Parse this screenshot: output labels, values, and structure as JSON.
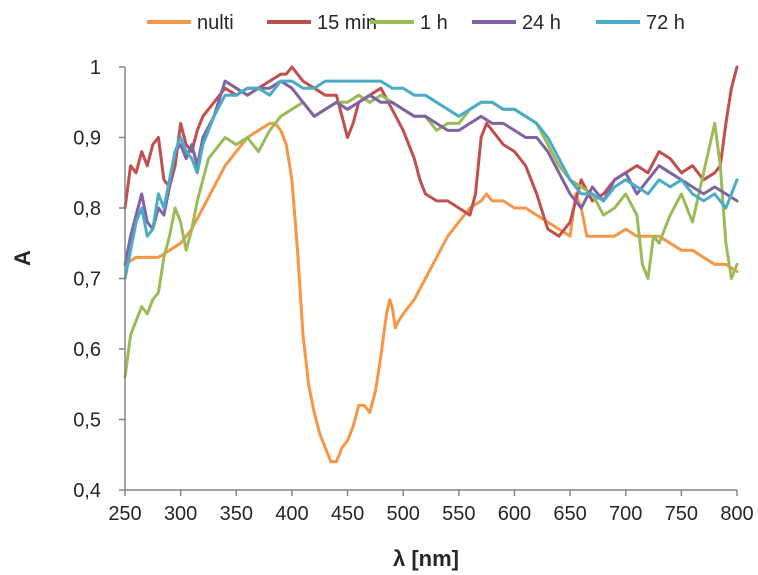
{
  "chart_data": {
    "type": "line",
    "title": "",
    "xlabel": "λ [nm]",
    "ylabel": "A",
    "xlim": [
      250,
      800
    ],
    "ylim": [
      0.4,
      1.0
    ],
    "x_ticks": [
      250,
      300,
      350,
      400,
      450,
      500,
      550,
      600,
      650,
      700,
      750,
      800
    ],
    "x_tick_labels": [
      "250",
      "300",
      "350",
      "400",
      "450",
      "500",
      "550",
      "600",
      "650",
      "700",
      "750",
      "800"
    ],
    "y_ticks": [
      0.4,
      0.5,
      0.6,
      0.7,
      0.8,
      0.9,
      1.0
    ],
    "y_tick_labels": [
      "0,4",
      "0,5",
      "0,6",
      "0,7",
      "0,8",
      "0,9",
      "1"
    ],
    "grid": false,
    "legend_position": "top",
    "series": [
      {
        "name": "nulti",
        "color": "#F79646",
        "x": [
          250,
          260,
          270,
          280,
          290,
          300,
          310,
          320,
          330,
          340,
          350,
          360,
          370,
          380,
          385,
          390,
          395,
          400,
          405,
          410,
          415,
          420,
          425,
          430,
          435,
          440,
          445,
          450,
          455,
          460,
          465,
          470,
          475,
          480,
          485,
          488,
          490,
          493,
          496,
          500,
          510,
          520,
          530,
          540,
          550,
          560,
          570,
          575,
          580,
          590,
          600,
          610,
          620,
          630,
          640,
          650,
          655,
          660,
          665,
          670,
          680,
          690,
          700,
          710,
          720,
          730,
          740,
          750,
          760,
          770,
          780,
          790,
          800
        ],
        "y": [
          0.72,
          0.73,
          0.73,
          0.73,
          0.74,
          0.75,
          0.77,
          0.8,
          0.83,
          0.86,
          0.88,
          0.9,
          0.91,
          0.92,
          0.92,
          0.91,
          0.89,
          0.84,
          0.74,
          0.62,
          0.55,
          0.51,
          0.48,
          0.46,
          0.44,
          0.44,
          0.46,
          0.47,
          0.49,
          0.52,
          0.52,
          0.51,
          0.54,
          0.59,
          0.65,
          0.67,
          0.66,
          0.63,
          0.64,
          0.65,
          0.67,
          0.7,
          0.73,
          0.76,
          0.78,
          0.8,
          0.81,
          0.82,
          0.81,
          0.81,
          0.8,
          0.8,
          0.79,
          0.78,
          0.77,
          0.76,
          0.82,
          0.8,
          0.76,
          0.76,
          0.76,
          0.76,
          0.77,
          0.76,
          0.76,
          0.76,
          0.75,
          0.74,
          0.74,
          0.73,
          0.72,
          0.72,
          0.71
        ]
      },
      {
        "name": "15 min",
        "color": "#C0504D",
        "x": [
          250,
          255,
          260,
          265,
          270,
          275,
          280,
          285,
          290,
          295,
          300,
          305,
          310,
          315,
          320,
          330,
          340,
          350,
          360,
          370,
          380,
          390,
          395,
          400,
          405,
          410,
          420,
          430,
          440,
          445,
          450,
          455,
          460,
          470,
          480,
          490,
          500,
          510,
          515,
          520,
          530,
          540,
          550,
          560,
          565,
          570,
          575,
          580,
          590,
          600,
          610,
          620,
          630,
          640,
          650,
          660,
          670,
          680,
          690,
          700,
          710,
          720,
          730,
          740,
          750,
          760,
          770,
          780,
          785,
          790,
          795,
          800
        ],
        "y": [
          0.8,
          0.86,
          0.85,
          0.88,
          0.86,
          0.89,
          0.9,
          0.84,
          0.83,
          0.86,
          0.92,
          0.89,
          0.88,
          0.91,
          0.93,
          0.95,
          0.97,
          0.96,
          0.97,
          0.97,
          0.98,
          0.99,
          0.99,
          1.0,
          0.99,
          0.98,
          0.97,
          0.96,
          0.96,
          0.93,
          0.9,
          0.92,
          0.95,
          0.96,
          0.97,
          0.94,
          0.91,
          0.87,
          0.84,
          0.82,
          0.81,
          0.81,
          0.8,
          0.79,
          0.82,
          0.9,
          0.92,
          0.91,
          0.89,
          0.88,
          0.86,
          0.82,
          0.77,
          0.76,
          0.78,
          0.84,
          0.81,
          0.82,
          0.84,
          0.85,
          0.86,
          0.85,
          0.88,
          0.87,
          0.85,
          0.86,
          0.84,
          0.85,
          0.86,
          0.92,
          0.97,
          1.0
        ]
      },
      {
        "name": "1 h",
        "color": "#9BBB59",
        "x": [
          250,
          255,
          260,
          265,
          270,
          275,
          280,
          285,
          290,
          295,
          300,
          305,
          310,
          315,
          320,
          325,
          330,
          340,
          350,
          360,
          370,
          380,
          390,
          400,
          410,
          420,
          430,
          440,
          450,
          460,
          470,
          480,
          490,
          500,
          510,
          520,
          530,
          540,
          550,
          560,
          570,
          580,
          590,
          600,
          610,
          620,
          630,
          640,
          650,
          660,
          670,
          680,
          690,
          700,
          710,
          715,
          720,
          725,
          730,
          740,
          750,
          760,
          770,
          780,
          785,
          790,
          795,
          800
        ],
        "y": [
          0.56,
          0.62,
          0.64,
          0.66,
          0.65,
          0.67,
          0.68,
          0.73,
          0.76,
          0.8,
          0.78,
          0.74,
          0.77,
          0.81,
          0.84,
          0.87,
          0.88,
          0.9,
          0.89,
          0.9,
          0.88,
          0.91,
          0.93,
          0.94,
          0.95,
          0.93,
          0.94,
          0.95,
          0.95,
          0.96,
          0.95,
          0.96,
          0.95,
          0.94,
          0.93,
          0.93,
          0.91,
          0.92,
          0.92,
          0.94,
          0.95,
          0.95,
          0.94,
          0.94,
          0.93,
          0.92,
          0.89,
          0.86,
          0.84,
          0.83,
          0.82,
          0.79,
          0.8,
          0.82,
          0.79,
          0.72,
          0.7,
          0.76,
          0.75,
          0.79,
          0.82,
          0.78,
          0.85,
          0.92,
          0.86,
          0.75,
          0.7,
          0.72
        ]
      },
      {
        "name": "24 h",
        "color": "#8064A2",
        "x": [
          250,
          255,
          260,
          265,
          270,
          275,
          280,
          285,
          290,
          295,
          300,
          305,
          310,
          315,
          320,
          330,
          340,
          350,
          360,
          370,
          380,
          390,
          400,
          410,
          420,
          430,
          440,
          450,
          460,
          470,
          480,
          490,
          500,
          510,
          520,
          530,
          540,
          550,
          560,
          570,
          580,
          590,
          600,
          610,
          620,
          630,
          640,
          650,
          660,
          670,
          680,
          690,
          700,
          710,
          720,
          730,
          740,
          750,
          760,
          770,
          780,
          790,
          800
        ],
        "y": [
          0.72,
          0.76,
          0.79,
          0.82,
          0.78,
          0.77,
          0.8,
          0.79,
          0.83,
          0.88,
          0.89,
          0.87,
          0.89,
          0.86,
          0.9,
          0.93,
          0.98,
          0.97,
          0.96,
          0.97,
          0.97,
          0.98,
          0.97,
          0.95,
          0.93,
          0.94,
          0.95,
          0.94,
          0.95,
          0.96,
          0.95,
          0.95,
          0.94,
          0.93,
          0.93,
          0.92,
          0.91,
          0.91,
          0.92,
          0.93,
          0.92,
          0.92,
          0.91,
          0.9,
          0.9,
          0.88,
          0.85,
          0.82,
          0.8,
          0.83,
          0.81,
          0.84,
          0.85,
          0.82,
          0.84,
          0.86,
          0.85,
          0.84,
          0.83,
          0.82,
          0.83,
          0.82,
          0.81
        ]
      },
      {
        "name": "72 h",
        "color": "#4BACC6",
        "x": [
          250,
          255,
          260,
          265,
          270,
          275,
          280,
          285,
          290,
          295,
          300,
          305,
          310,
          315,
          320,
          330,
          340,
          350,
          360,
          370,
          380,
          390,
          400,
          410,
          420,
          430,
          440,
          450,
          460,
          470,
          480,
          490,
          500,
          510,
          520,
          530,
          540,
          550,
          560,
          570,
          580,
          590,
          600,
          610,
          620,
          630,
          640,
          650,
          660,
          670,
          680,
          690,
          700,
          710,
          720,
          730,
          740,
          750,
          760,
          770,
          780,
          790,
          800
        ],
        "y": [
          0.7,
          0.74,
          0.78,
          0.8,
          0.76,
          0.77,
          0.82,
          0.8,
          0.84,
          0.88,
          0.9,
          0.88,
          0.87,
          0.85,
          0.89,
          0.93,
          0.96,
          0.96,
          0.97,
          0.97,
          0.96,
          0.98,
          0.98,
          0.97,
          0.97,
          0.98,
          0.98,
          0.98,
          0.98,
          0.98,
          0.98,
          0.97,
          0.97,
          0.96,
          0.96,
          0.95,
          0.94,
          0.93,
          0.94,
          0.95,
          0.95,
          0.94,
          0.94,
          0.93,
          0.92,
          0.9,
          0.87,
          0.84,
          0.82,
          0.82,
          0.81,
          0.83,
          0.84,
          0.83,
          0.82,
          0.84,
          0.83,
          0.84,
          0.82,
          0.81,
          0.82,
          0.8,
          0.84
        ]
      }
    ]
  }
}
